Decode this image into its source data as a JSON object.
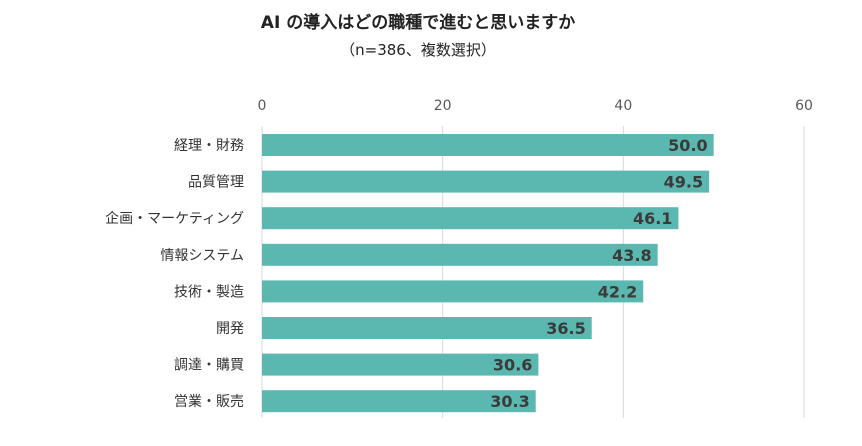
{
  "chart_data": {
    "type": "bar",
    "orientation": "horizontal",
    "title": "AI の導入はどの職種で進むと思いますか",
    "subtitle": "（n=386、複数選択）",
    "categories": [
      "経理・財務",
      "品質管理",
      "企画・マーケティング",
      "情報システム",
      "技術・製造",
      "開発",
      "調達・購買",
      "営業・販売"
    ],
    "values": [
      50.0,
      49.5,
      46.1,
      43.8,
      42.2,
      36.5,
      30.6,
      30.3
    ],
    "value_labels": [
      "50.0",
      "49.5",
      "46.1",
      "43.8",
      "42.2",
      "36.5",
      "30.6",
      "30.3"
    ],
    "xlim": [
      0,
      60
    ],
    "xticks": [
      0,
      20,
      40,
      60
    ],
    "x_axis_position": "top",
    "grid": true,
    "legend": "none",
    "bar_color": "#5bb8b0",
    "grid_color": "#d9d9d9"
  }
}
